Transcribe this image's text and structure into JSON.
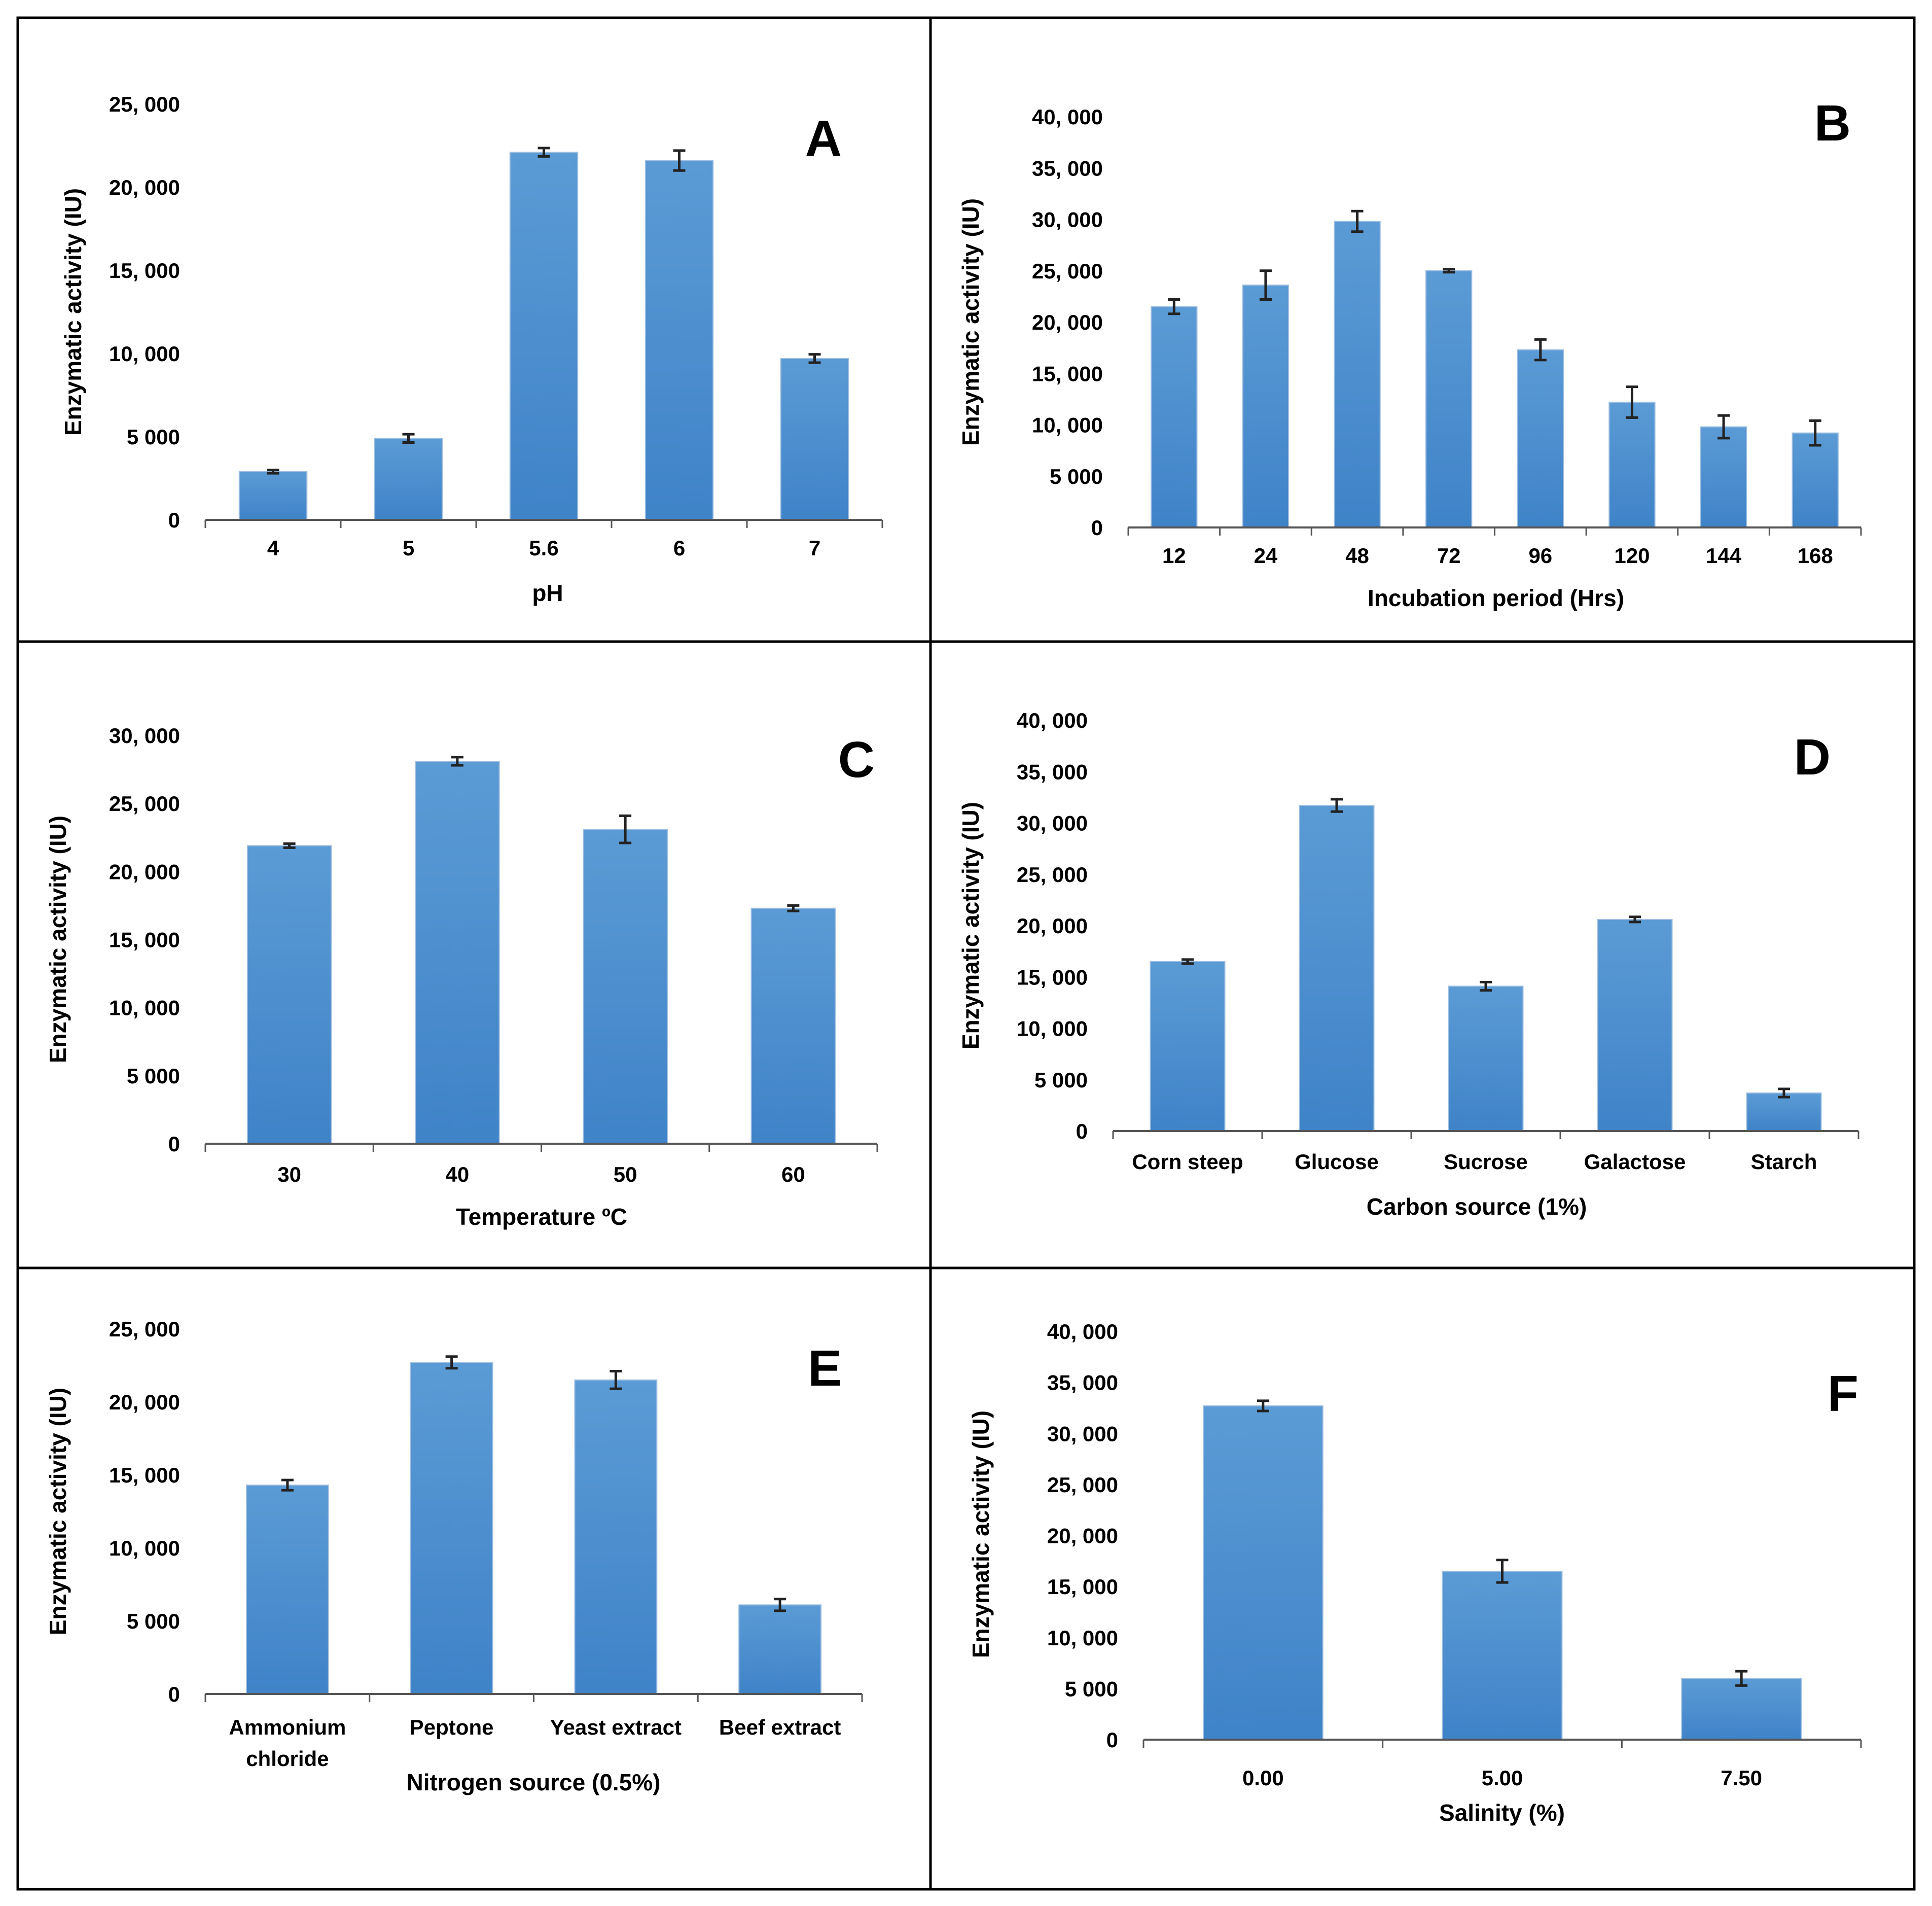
{
  "bar_color": "#5b9bd5",
  "bar_color_dark": "#3f83c8",
  "chart_data": [
    {
      "panel": "A",
      "type": "bar",
      "xlabel": "pH",
      "ylabel": "Enzymatic activity (IU)",
      "categories": [
        "4",
        "5",
        "5.6",
        "6",
        "7"
      ],
      "values": [
        2900,
        4900,
        22100,
        21600,
        9700
      ],
      "errors": [
        100,
        250,
        250,
        600,
        250
      ],
      "ylim": [
        0,
        25000
      ],
      "yticks": [
        0,
        5000,
        10000,
        15000,
        20000,
        25000
      ],
      "ytick_labels": [
        "0",
        "5 000",
        "10, 000",
        "15, 000",
        "20, 000",
        "25, 000"
      ],
      "grid": false,
      "legend": "none"
    },
    {
      "panel": "B",
      "type": "bar",
      "xlabel": "Incubation period (Hrs)",
      "ylabel": "Enzymatic activity (IU)",
      "categories": [
        "12",
        "24",
        "48",
        "72",
        "96",
        "120",
        "144",
        "168"
      ],
      "values": [
        21500,
        23600,
        29800,
        25000,
        17300,
        12200,
        9800,
        9200
      ],
      "errors": [
        700,
        1400,
        1000,
        150,
        1000,
        1500,
        1100,
        1200
      ],
      "ylim": [
        0,
        40000
      ],
      "yticks": [
        0,
        5000,
        10000,
        15000,
        20000,
        25000,
        30000,
        35000,
        40000
      ],
      "ytick_labels": [
        "0",
        "5 000",
        "10, 000",
        "15, 000",
        "20, 000",
        "25, 000",
        "30, 000",
        "35, 000",
        "40, 000"
      ],
      "grid": false,
      "legend": "none"
    },
    {
      "panel": "C",
      "type": "bar",
      "xlabel": "Temperature ºC",
      "ylabel": "Enzymatic activity (IU)",
      "categories": [
        "30",
        "40",
        "50",
        "60"
      ],
      "values": [
        21900,
        28100,
        23100,
        17300
      ],
      "errors": [
        150,
        300,
        1000,
        200
      ],
      "ylim": [
        0,
        30000
      ],
      "yticks": [
        0,
        5000,
        10000,
        15000,
        20000,
        25000,
        30000
      ],
      "ytick_labels": [
        "0",
        "5  000",
        "10, 000",
        "15, 000",
        "20, 000",
        "25, 000",
        "30, 000"
      ],
      "grid": false,
      "legend": "none"
    },
    {
      "panel": "D",
      "type": "bar",
      "xlabel": "Carbon source (1%)",
      "ylabel": "Enzymatic activity (IU)",
      "categories": [
        "Corn steep",
        "Glucose",
        "Sucrose",
        "Galactose",
        "Starch"
      ],
      "values": [
        16500,
        31700,
        14100,
        20600,
        3700
      ],
      "errors": [
        200,
        600,
        400,
        250,
        400
      ],
      "ylim": [
        0,
        40000
      ],
      "yticks": [
        0,
        5000,
        10000,
        15000,
        20000,
        25000,
        30000,
        35000,
        40000
      ],
      "ytick_labels": [
        "0",
        "5 000",
        "10, 000",
        "15, 000",
        "20, 000",
        "25, 000",
        "30, 000",
        "35, 000",
        "40, 000"
      ],
      "grid": false,
      "legend": "none"
    },
    {
      "panel": "E",
      "type": "bar",
      "xlabel": "Nitrogen source (0.5%)",
      "ylabel": "Enzymatic activity (IU)",
      "categories": [
        "Ammonium chloride",
        "Peptone",
        "Yeast extract",
        "Beef extract"
      ],
      "category_lines": [
        [
          "Ammonium",
          "chloride"
        ],
        [
          "Peptone"
        ],
        [
          "Yeast extract"
        ],
        [
          "Beef extract"
        ]
      ],
      "values": [
        14300,
        22700,
        21500,
        6100
      ],
      "errors": [
        350,
        400,
        600,
        400
      ],
      "ylim": [
        0,
        25000
      ],
      "yticks": [
        0,
        5000,
        10000,
        15000,
        20000,
        25000
      ],
      "ytick_labels": [
        "0",
        "5 000",
        "10, 000",
        "15, 000",
        "20, 000",
        "25, 000"
      ],
      "grid": false,
      "legend": "none"
    },
    {
      "panel": "F",
      "type": "bar",
      "xlabel": "Salinity (%)",
      "ylabel": "Enzymatic activity (IU)",
      "categories": [
        "0.00",
        "5.00",
        "7.50"
      ],
      "values": [
        32700,
        16500,
        6000
      ],
      "errors": [
        500,
        1100,
        700
      ],
      "ylim": [
        0,
        40000
      ],
      "yticks": [
        0,
        5000,
        10000,
        15000,
        20000,
        25000,
        30000,
        35000,
        40000
      ],
      "ytick_labels": [
        "0",
        "5 000",
        "10, 000",
        "15, 000",
        "20, 000",
        "25, 000",
        "30, 000",
        "35, 000",
        "40, 000"
      ],
      "grid": false,
      "legend": "none"
    }
  ]
}
